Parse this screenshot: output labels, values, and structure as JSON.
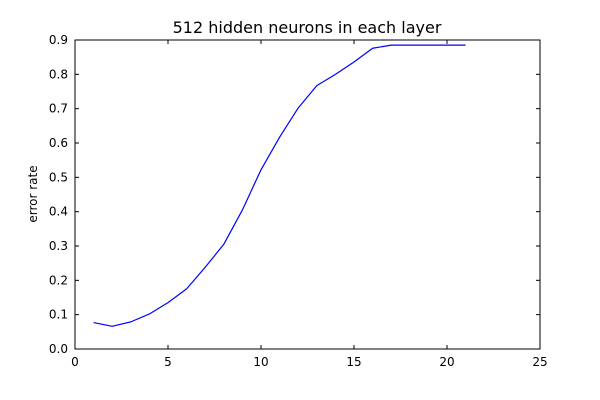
{
  "chart_data": {
    "type": "line",
    "title": "512 hidden neurons in each layer",
    "xlabel": "",
    "ylabel": "error rate",
    "xlim": [
      0,
      25
    ],
    "ylim": [
      0,
      0.9
    ],
    "xticks": [
      0,
      5,
      10,
      15,
      20,
      25
    ],
    "xtick_labels": [
      "0",
      "5",
      "10",
      "15",
      "20",
      "25"
    ],
    "yticks": [
      0.0,
      0.1,
      0.2,
      0.3,
      0.4,
      0.5,
      0.6,
      0.7,
      0.8,
      0.9
    ],
    "ytick_labels": [
      "0.0",
      "0.1",
      "0.2",
      "0.3",
      "0.4",
      "0.5",
      "0.6",
      "0.7",
      "0.8",
      "0.9"
    ],
    "grid": false,
    "legend": "none",
    "series": [
      {
        "color": "#0000ff",
        "x": [
          1,
          2,
          3,
          4,
          5,
          6,
          7,
          8,
          9,
          10,
          11,
          12,
          13,
          14,
          15,
          16,
          17,
          18,
          19,
          20,
          21
        ],
        "y": [
          0.077,
          0.066,
          0.079,
          0.102,
          0.135,
          0.175,
          0.238,
          0.305,
          0.405,
          0.522,
          0.617,
          0.702,
          0.767,
          0.8,
          0.836,
          0.876,
          0.885,
          0.885,
          0.885,
          0.885,
          0.885
        ]
      }
    ]
  }
}
